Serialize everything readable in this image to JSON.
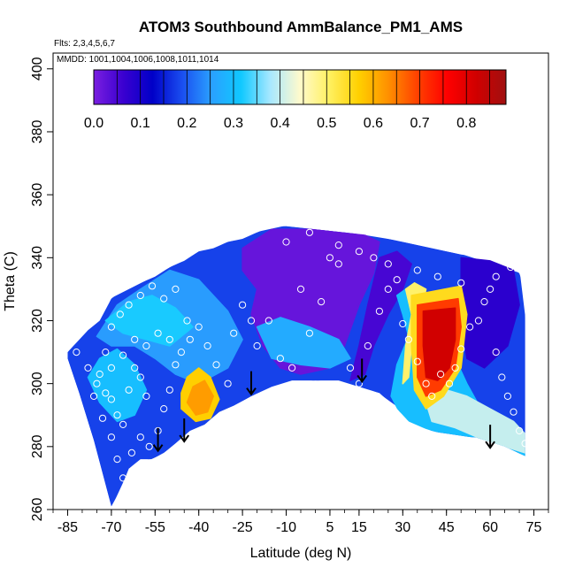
{
  "chart_data": {
    "type": "heatmap",
    "title": "ATOM3 Southbound AmmBalance_PM1_AMS",
    "flights_note": "Flts: 2,3,4,5,6,7",
    "dates_note": "MMDD: 1001,1004,1006,1008,1011,1014",
    "xlabel": "Latitude (deg N)",
    "ylabel": "Theta (C)",
    "xlim": [
      -90,
      80
    ],
    "ylim": [
      260,
      405
    ],
    "x_ticks": [
      "-85",
      "-70",
      "-55",
      "-40",
      "-25",
      "-10",
      "5",
      "15",
      "30",
      "45",
      "60",
      "75"
    ],
    "x_tick_values": [
      -85,
      -70,
      -55,
      -40,
      -25,
      -10,
      5,
      15,
      30,
      45,
      60,
      75
    ],
    "y_ticks": [
      "260",
      "280",
      "300",
      "320",
      "340",
      "360",
      "380",
      "400"
    ],
    "y_tick_values": [
      260,
      280,
      300,
      320,
      340,
      360,
      380,
      400
    ],
    "colorbar": {
      "ticks": [
        "0.0",
        "0.1",
        "0.2",
        "0.3",
        "0.4",
        "0.5",
        "0.6",
        "0.7",
        "0.8"
      ],
      "tick_values": [
        0.0,
        0.1,
        0.2,
        0.3,
        0.4,
        0.5,
        0.6,
        0.7,
        0.8
      ],
      "range": [
        0.0,
        0.885
      ],
      "colors": [
        "#7a1fe0",
        "#3a00d0",
        "#0000c8",
        "#1a4ef0",
        "#2aa0ff",
        "#10c8ff",
        "#a8e8ff",
        "#fffacc",
        "#fff060",
        "#ffd000",
        "#ff9000",
        "#ff4000",
        "#ff0000",
        "#d00000",
        "#a01010"
      ]
    },
    "upper_boundary": [
      [
        -85,
        310
      ],
      [
        -82,
        313
      ],
      [
        -78,
        317
      ],
      [
        -74,
        320
      ],
      [
        -70,
        327
      ],
      [
        -66,
        330
      ],
      [
        -60,
        332
      ],
      [
        -55,
        334
      ],
      [
        -50,
        337
      ],
      [
        -45,
        339
      ],
      [
        -40,
        342
      ],
      [
        -35,
        343
      ],
      [
        -30,
        345
      ],
      [
        -25,
        346
      ],
      [
        -20,
        348
      ],
      [
        -15,
        350
      ],
      [
        -10,
        350
      ],
      [
        0,
        349
      ],
      [
        10,
        348
      ],
      [
        20,
        347
      ],
      [
        30,
        345
      ],
      [
        40,
        343
      ],
      [
        50,
        341
      ],
      [
        60,
        340
      ],
      [
        67,
        338
      ],
      [
        70,
        335
      ],
      [
        72,
        330
      ],
      [
        72,
        320
      ]
    ],
    "lower_boundary": [
      [
        72,
        277
      ],
      [
        65,
        280
      ],
      [
        55,
        283
      ],
      [
        48,
        283
      ],
      [
        40,
        285
      ],
      [
        33,
        287
      ],
      [
        28,
        292
      ],
      [
        22,
        297
      ],
      [
        15,
        299
      ],
      [
        8,
        301
      ],
      [
        0,
        301
      ],
      [
        -8,
        301
      ],
      [
        -15,
        299
      ],
      [
        -22,
        296
      ],
      [
        -28,
        293
      ],
      [
        -33,
        291
      ],
      [
        -38,
        287
      ],
      [
        -43,
        285
      ],
      [
        -48,
        281
      ],
      [
        -52,
        278
      ],
      [
        -56,
        276
      ],
      [
        -60,
        276
      ],
      [
        -64,
        273
      ],
      [
        -67,
        266
      ],
      [
        -70,
        261
      ],
      [
        -72,
        268
      ],
      [
        -76,
        282
      ],
      [
        -81,
        297
      ],
      [
        -85,
        308
      ]
    ],
    "regions": [
      {
        "value": 0.18,
        "poly": [
          [
            -85,
            310
          ],
          [
            -70,
            327
          ],
          [
            -55,
            334
          ],
          [
            -40,
            342
          ],
          [
            -20,
            348
          ],
          [
            -10,
            350
          ],
          [
            10,
            348
          ],
          [
            30,
            345
          ],
          [
            50,
            341
          ],
          [
            70,
            335
          ],
          [
            72,
            320
          ],
          [
            72,
            277
          ],
          [
            55,
            283
          ],
          [
            40,
            285
          ],
          [
            22,
            297
          ],
          [
            0,
            301
          ],
          [
            -22,
            296
          ],
          [
            -38,
            287
          ],
          [
            -52,
            278
          ],
          [
            -64,
            273
          ],
          [
            -70,
            261
          ],
          [
            -76,
            282
          ],
          [
            -85,
            308
          ]
        ]
      },
      {
        "value": 0.02,
        "poly": [
          [
            -25,
            343
          ],
          [
            -15,
            349
          ],
          [
            0,
            349
          ],
          [
            15,
            348
          ],
          [
            22,
            345
          ],
          [
            20,
            335
          ],
          [
            15,
            325
          ],
          [
            10,
            312
          ],
          [
            5,
            305
          ],
          [
            -5,
            303
          ],
          [
            -12,
            305
          ],
          [
            -18,
            312
          ],
          [
            -22,
            322
          ],
          [
            -20,
            330
          ],
          [
            -25,
            336
          ]
        ]
      },
      {
        "value": 0.05,
        "poly": [
          [
            22,
            340
          ],
          [
            28,
            342
          ],
          [
            33,
            338
          ],
          [
            30,
            330
          ],
          [
            25,
            322
          ],
          [
            20,
            312
          ],
          [
            17,
            303
          ],
          [
            12,
            301
          ],
          [
            15,
            312
          ],
          [
            18,
            325
          ]
        ]
      },
      {
        "value": 0.08,
        "poly": [
          [
            50,
            340
          ],
          [
            60,
            339
          ],
          [
            68,
            336
          ],
          [
            70,
            325
          ],
          [
            66,
            312
          ],
          [
            58,
            305
          ],
          [
            52,
            308
          ],
          [
            50,
            320
          ]
        ]
      },
      {
        "value": 0.25,
        "poly": [
          [
            -75,
            315
          ],
          [
            -68,
            325
          ],
          [
            -60,
            330
          ],
          [
            -50,
            336
          ],
          [
            -40,
            333
          ],
          [
            -30,
            323
          ],
          [
            -25,
            314
          ],
          [
            -30,
            305
          ],
          [
            -40,
            300
          ],
          [
            -48,
            303
          ],
          [
            -55,
            308
          ],
          [
            -62,
            312
          ],
          [
            -70,
            312
          ]
        ]
      },
      {
        "value": 0.32,
        "poly": [
          [
            -72,
            320
          ],
          [
            -64,
            326
          ],
          [
            -56,
            328
          ],
          [
            -48,
            324
          ],
          [
            -42,
            318
          ],
          [
            -50,
            312
          ],
          [
            -58,
            314
          ],
          [
            -66,
            316
          ]
        ]
      },
      {
        "value": 0.3,
        "poly": [
          [
            -78,
            302
          ],
          [
            -74,
            308
          ],
          [
            -68,
            311
          ],
          [
            -62,
            306
          ],
          [
            -58,
            298
          ],
          [
            -62,
            290
          ],
          [
            -68,
            288
          ],
          [
            -74,
            294
          ]
        ]
      },
      {
        "value": 0.27,
        "poly": [
          [
            -20,
            318
          ],
          [
            -12,
            321
          ],
          [
            -2,
            318
          ],
          [
            8,
            314
          ],
          [
            12,
            308
          ],
          [
            5,
            305
          ],
          [
            -5,
            306
          ],
          [
            -15,
            308
          ]
        ]
      },
      {
        "value": 0.3,
        "poly": [
          [
            28,
            328
          ],
          [
            34,
            332
          ],
          [
            40,
            324
          ],
          [
            46,
            312
          ],
          [
            52,
            300
          ],
          [
            58,
            290
          ],
          [
            66,
            286
          ],
          [
            72,
            280
          ],
          [
            72,
            277
          ],
          [
            55,
            283
          ],
          [
            40,
            285
          ],
          [
            30,
            289
          ],
          [
            26,
            296
          ],
          [
            28,
            306
          ],
          [
            32,
            315
          ],
          [
            30,
            322
          ]
        ]
      },
      {
        "value": 0.4,
        "poly": [
          [
            45,
            298
          ],
          [
            52,
            296
          ],
          [
            60,
            292
          ],
          [
            68,
            288
          ],
          [
            72,
            284
          ],
          [
            72,
            278
          ],
          [
            58,
            282
          ],
          [
            48,
            286
          ],
          [
            40,
            288
          ],
          [
            38,
            294
          ]
        ]
      },
      {
        "value": 0.5,
        "poly": [
          [
            31,
            330
          ],
          [
            34,
            332
          ],
          [
            38,
            330
          ],
          [
            36,
            322
          ],
          [
            33,
            312
          ],
          [
            32,
            302
          ],
          [
            30,
            300
          ],
          [
            31,
            312
          ],
          [
            33,
            322
          ]
        ]
      },
      {
        "value": 0.57,
        "poly": [
          [
            -44,
            302
          ],
          [
            -40,
            305
          ],
          [
            -36,
            302
          ],
          [
            -33,
            295
          ],
          [
            -36,
            289
          ],
          [
            -41,
            288
          ],
          [
            -46,
            292
          ],
          [
            -46,
            297
          ]
        ]
      },
      {
        "value": 0.62,
        "poly": [
          [
            -42,
            299
          ],
          [
            -38,
            301
          ],
          [
            -35,
            296
          ],
          [
            -37,
            291
          ],
          [
            -41,
            290
          ],
          [
            -44,
            294
          ]
        ]
      },
      {
        "value": 0.55,
        "poly": [
          [
            33,
            328
          ],
          [
            50,
            331
          ],
          [
            52,
            322
          ],
          [
            50,
            305
          ],
          [
            44,
            296
          ],
          [
            38,
            292
          ],
          [
            34,
            298
          ],
          [
            33,
            312
          ]
        ]
      },
      {
        "value": 0.7,
        "poly": [
          [
            35,
            325
          ],
          [
            49,
            327
          ],
          [
            50,
            318
          ],
          [
            48,
            305
          ],
          [
            43,
            298
          ],
          [
            38,
            296
          ],
          [
            35,
            302
          ],
          [
            35,
            314
          ]
        ]
      },
      {
        "value": 0.82,
        "poly": [
          [
            37,
            323
          ],
          [
            48,
            324
          ],
          [
            48,
            314
          ],
          [
            46,
            305
          ],
          [
            42,
            301
          ],
          [
            38,
            302
          ],
          [
            37,
            312
          ]
        ]
      }
    ],
    "sample_points": [
      [
        -82,
        310
      ],
      [
        -78,
        305
      ],
      [
        -75,
        300
      ],
      [
        -72,
        297
      ],
      [
        -70,
        295
      ],
      [
        -68,
        290
      ],
      [
        -66,
        287
      ],
      [
        -64,
        298
      ],
      [
        -62,
        305
      ],
      [
        -60,
        302
      ],
      [
        -58,
        296
      ],
      [
        -72,
        310
      ],
      [
        -70,
        318
      ],
      [
        -67,
        322
      ],
      [
        -64,
        325
      ],
      [
        -60,
        328
      ],
      [
        -56,
        331
      ],
      [
        -52,
        327
      ],
      [
        -48,
        330
      ],
      [
        -44,
        320
      ],
      [
        -50,
        314
      ],
      [
        -54,
        316
      ],
      [
        -58,
        312
      ],
      [
        -62,
        314
      ],
      [
        -66,
        309
      ],
      [
        -70,
        305
      ],
      [
        -74,
        303
      ],
      [
        -76,
        296
      ],
      [
        -73,
        289
      ],
      [
        -70,
        283
      ],
      [
        -68,
        276
      ],
      [
        -66,
        270
      ],
      [
        -63,
        278
      ],
      [
        -60,
        283
      ],
      [
        -57,
        280
      ],
      [
        -54,
        285
      ],
      [
        -52,
        292
      ],
      [
        -50,
        298
      ],
      [
        -48,
        306
      ],
      [
        -46,
        310
      ],
      [
        -43,
        314
      ],
      [
        -40,
        318
      ],
      [
        -37,
        312
      ],
      [
        -34,
        306
      ],
      [
        -30,
        300
      ],
      [
        -28,
        316
      ],
      [
        -25,
        325
      ],
      [
        -22,
        320
      ],
      [
        -20,
        312
      ],
      [
        -16,
        320
      ],
      [
        -12,
        308
      ],
      [
        -8,
        305
      ],
      [
        -5,
        330
      ],
      [
        -2,
        316
      ],
      [
        2,
        326
      ],
      [
        5,
        340
      ],
      [
        8,
        338
      ],
      [
        12,
        305
      ],
      [
        15,
        300
      ],
      [
        18,
        312
      ],
      [
        22,
        323
      ],
      [
        25,
        330
      ],
      [
        28,
        333
      ],
      [
        30,
        319
      ],
      [
        32,
        314
      ],
      [
        35,
        307
      ],
      [
        38,
        300
      ],
      [
        40,
        296
      ],
      [
        43,
        303
      ],
      [
        46,
        300
      ],
      [
        48,
        305
      ],
      [
        50,
        311
      ],
      [
        53,
        318
      ],
      [
        56,
        320
      ],
      [
        58,
        326
      ],
      [
        60,
        330
      ],
      [
        62,
        310
      ],
      [
        64,
        302
      ],
      [
        66,
        296
      ],
      [
        68,
        291
      ],
      [
        70,
        285
      ],
      [
        72,
        281
      ],
      [
        -10,
        345
      ],
      [
        -2,
        348
      ],
      [
        8,
        344
      ],
      [
        15,
        342
      ],
      [
        20,
        340
      ],
      [
        25,
        338
      ],
      [
        35,
        336
      ],
      [
        42,
        334
      ],
      [
        50,
        332
      ],
      [
        62,
        334
      ],
      [
        67,
        337
      ]
    ],
    "arrows": [
      {
        "x": -54,
        "theta": 282
      },
      {
        "x": -45,
        "theta": 285
      },
      {
        "x": -22,
        "theta": 300
      },
      {
        "x": 16,
        "theta": 304
      },
      {
        "x": 60,
        "theta": 283
      }
    ]
  }
}
